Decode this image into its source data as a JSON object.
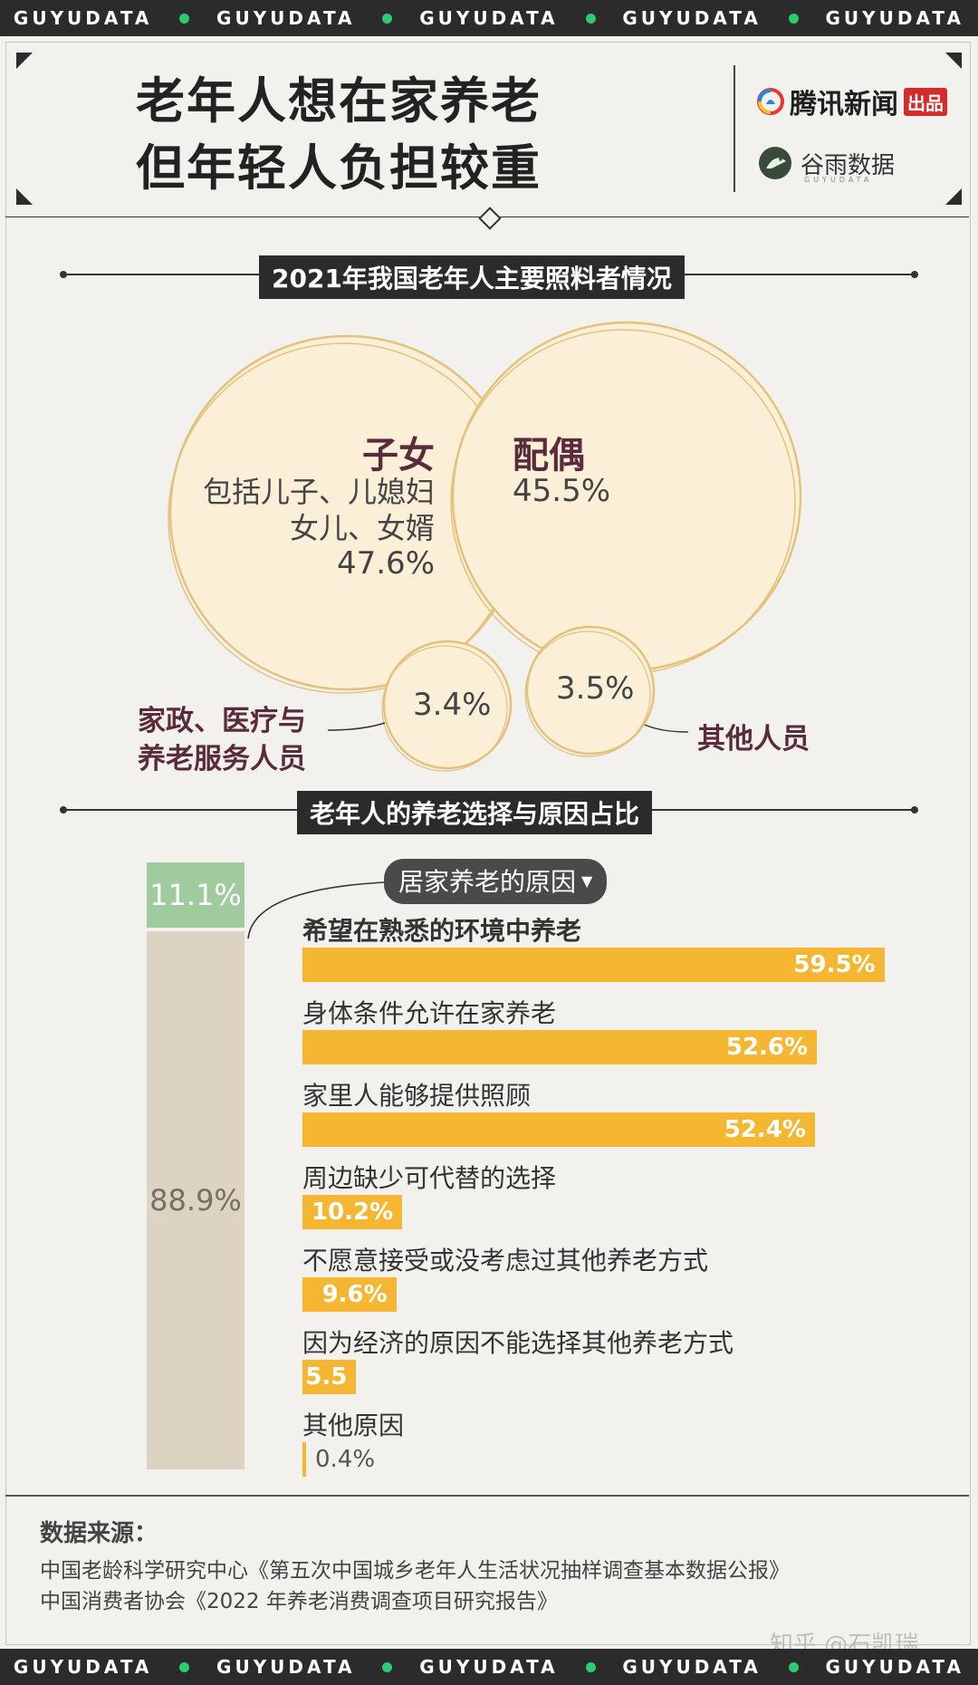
{
  "band": {
    "label": "GUYUDATA"
  },
  "header": {
    "title_line1": "老年人想在家养老",
    "title_line2": "但年轻人负担较重",
    "brand1_name": "腾讯新闻",
    "brand1_tag": "出品",
    "brand2_name": "谷雨数据",
    "brand2_sub": "GUYUDATA"
  },
  "section1": {
    "title": "2021年我国老年人主要照料者情况"
  },
  "section2": {
    "title": "老年人的养老选择与原因占比"
  },
  "colors": {
    "bubble_fill": "#fcefd8",
    "bubble_stroke": "#e3c27c",
    "bar": "#f5b731",
    "home": "#ddd3c2",
    "other": "#9fcb9e",
    "label_dark": "#5a2b3a"
  },
  "chart_data": [
    {
      "type": "bubble",
      "title": "2021年我国老年人主要照料者情况",
      "items": [
        {
          "name": "子女",
          "desc_line1": "包括儿子、儿媳妇",
          "desc_line2": "女儿、女婿",
          "value": 47.6,
          "label": "47.6%"
        },
        {
          "name": "配偶",
          "value": 45.5,
          "label": "45.5%"
        },
        {
          "name_line1": "家政、医疗与",
          "name_line2": "养老服务人员",
          "value": 3.4,
          "label": "3.4%"
        },
        {
          "name": "其他人员",
          "value": 3.5,
          "label": "3.5%"
        }
      ]
    },
    {
      "type": "bar",
      "title": "老年人的养老选择与原因占比",
      "stack": [
        {
          "value": 11.1,
          "label": "11.1%"
        },
        {
          "value": 88.9,
          "label": "88.9%"
        }
      ],
      "reasons_title": "居家养老的原因",
      "categories": [
        "希望在熟悉的环境中养老",
        "身体条件允许在家养老",
        "家里人能够提供照顾",
        "周边缺少可代替的选择",
        "不愿意接受或没考虑过其他养老方式",
        "因为经济的原因不能选择其他养老方式",
        "其他原因"
      ],
      "values": [
        59.5,
        52.6,
        52.4,
        10.2,
        9.6,
        5.5,
        0.4
      ],
      "value_labels": [
        "59.5%",
        "52.6%",
        "52.4%",
        "10.2%",
        "9.6%",
        "5.5",
        "0.4%"
      ],
      "xlim": [
        0,
        60
      ]
    }
  ],
  "source": {
    "heading": "数据来源：",
    "line1": "中国老龄科学研究中心《第五次中国城乡老年人生活状况抽样调查基本数据公报》",
    "line2": "中国消费者协会《2022 年养老消费调查项目研究报告》"
  },
  "watermark": "知乎 @石凯瑞"
}
